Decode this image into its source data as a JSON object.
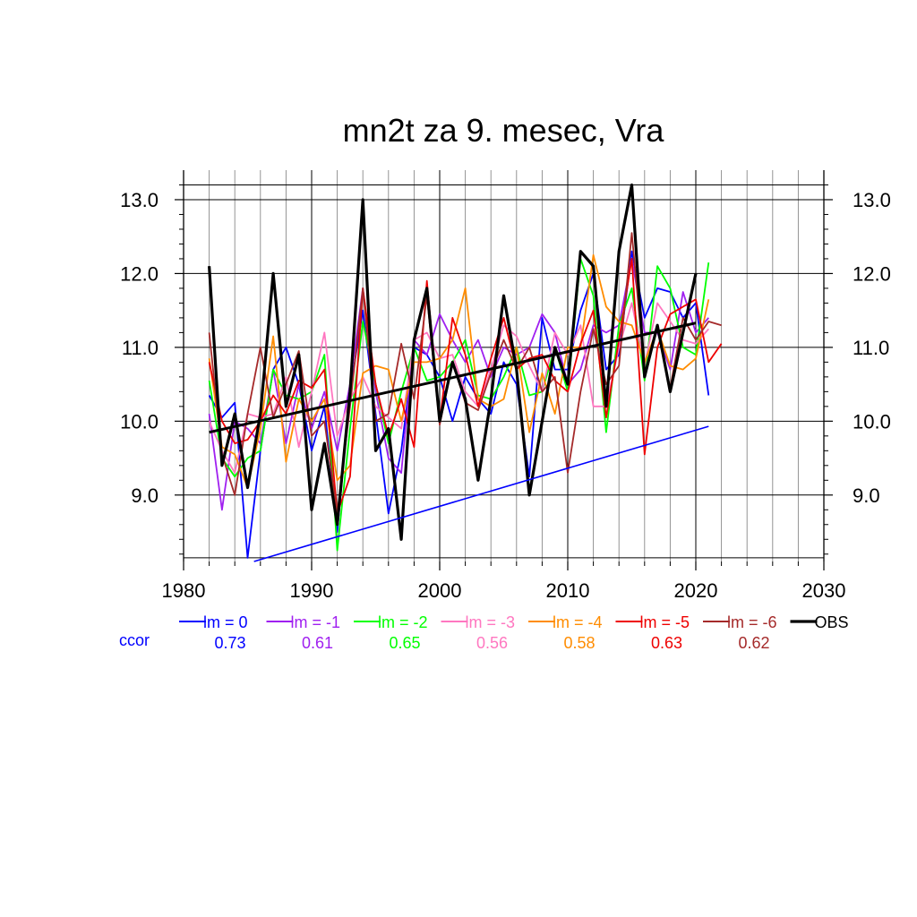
{
  "chart_data": {
    "type": "line",
    "title": "mn2t za 9. mesec, Vra",
    "xlabel": "",
    "ylabel": "",
    "xlim": [
      1980,
      2030
    ],
    "ylim": [
      8.1,
      13.4
    ],
    "x_ticks": [
      "1980",
      "1990",
      "2000",
      "2010",
      "2020",
      "2030"
    ],
    "y_ticks": [
      "9.0",
      "10.0",
      "11.0",
      "12.0",
      "13.0"
    ],
    "grid": true,
    "legend": "bottom",
    "ccor_label": "ccor",
    "series": [
      {
        "name": "lm = 0",
        "color": "#0000ff",
        "ccor": "0.73",
        "x": [
          1982,
          1983,
          1984,
          1985,
          1986,
          1987,
          1988,
          1989,
          1990,
          1991,
          1992,
          1993,
          1994,
          1995,
          1996,
          1997,
          1998,
          1999,
          2000,
          2001,
          2002,
          2003,
          2004,
          2005,
          2006,
          2007,
          2008,
          2009,
          2010,
          2011,
          2012,
          2013,
          2014,
          2015,
          2016,
          2017,
          2018,
          2019,
          2020,
          2021
        ],
        "values": [
          10.35,
          10.05,
          10.25,
          8.15,
          9.6,
          10.7,
          11.0,
          10.5,
          9.6,
          10.2,
          8.5,
          10.4,
          11.5,
          10.1,
          8.75,
          9.6,
          11.0,
          10.9,
          10.6,
          10.0,
          10.6,
          10.3,
          10.1,
          10.8,
          10.5,
          9.25,
          11.4,
          10.7,
          10.7,
          11.5,
          12.0,
          10.7,
          10.9,
          12.3,
          11.4,
          11.8,
          11.75,
          11.4,
          11.6,
          10.35
        ]
      },
      {
        "name": "lm = -1",
        "color": "#a020f0",
        "ccor": "0.61",
        "x": [
          1982,
          1983,
          1984,
          1985,
          1986,
          1987,
          1988,
          1989,
          1990,
          1991,
          1992,
          1993,
          1994,
          1995,
          1996,
          1997,
          1998,
          1999,
          2000,
          2001,
          2002,
          2003,
          2004,
          2005,
          2006,
          2007,
          2008,
          2009,
          2010,
          2011,
          2012,
          2013,
          2014,
          2015,
          2016,
          2017,
          2018,
          2019,
          2020,
          2021
        ],
        "values": [
          10.1,
          8.8,
          10.0,
          9.9,
          9.7,
          10.7,
          9.7,
          10.5,
          9.9,
          10.4,
          9.6,
          10.5,
          11.8,
          10.4,
          9.5,
          9.3,
          11.1,
          10.9,
          11.45,
          11.1,
          10.8,
          11.1,
          10.6,
          11.0,
          10.9,
          11.0,
          11.45,
          11.2,
          10.5,
          10.7,
          11.3,
          11.2,
          11.3,
          12.2,
          11.2,
          11.2,
          10.7,
          11.75,
          11.2,
          11.4
        ]
      },
      {
        "name": "lm = -2",
        "color": "#00ff00",
        "ccor": "0.65",
        "x": [
          1982,
          1983,
          1984,
          1985,
          1986,
          1987,
          1988,
          1989,
          1990,
          1991,
          1992,
          1993,
          1994,
          1995,
          1996,
          1997,
          1998,
          1999,
          2000,
          2001,
          2002,
          2003,
          2004,
          2005,
          2006,
          2007,
          2008,
          2009,
          2010,
          2011,
          2012,
          2013,
          2014,
          2015,
          2016,
          2017,
          2018,
          2019,
          2020,
          2021
        ],
        "values": [
          10.55,
          9.5,
          9.25,
          9.5,
          9.6,
          10.7,
          10.35,
          10.3,
          10.4,
          10.9,
          8.25,
          9.9,
          11.35,
          10.5,
          9.7,
          10.4,
          11.0,
          10.55,
          10.6,
          10.8,
          11.1,
          10.35,
          10.3,
          10.6,
          11.0,
          10.35,
          10.4,
          11.0,
          10.4,
          12.2,
          11.7,
          9.85,
          11.3,
          11.8,
          10.55,
          12.1,
          11.8,
          11.0,
          10.9,
          12.15
        ]
      },
      {
        "name": "lm = -3",
        "color": "#ff77c0",
        "ccor": "0.56",
        "x": [
          1982,
          1983,
          1984,
          1985,
          1986,
          1987,
          1988,
          1989,
          1990,
          1991,
          1992,
          1993,
          1994,
          1995,
          1996,
          1997,
          1998,
          1999,
          2000,
          2001,
          2002,
          2003,
          2004,
          2005,
          2006,
          2007,
          2008,
          2009,
          2010,
          2011,
          2012,
          2013,
          2014,
          2015,
          2016,
          2017,
          2018,
          2019,
          2020,
          2021
        ],
        "values": [
          10.0,
          9.6,
          9.3,
          10.1,
          10.05,
          10.1,
          10.6,
          9.65,
          10.4,
          11.2,
          9.8,
          10.3,
          10.6,
          10.2,
          10.05,
          9.9,
          11.1,
          11.2,
          10.85,
          10.9,
          10.4,
          10.2,
          10.7,
          11.3,
          11.15,
          10.75,
          10.4,
          11.2,
          10.9,
          11.3,
          10.2,
          10.2,
          11.0,
          11.6,
          10.75,
          11.6,
          11.35,
          11.1,
          11.05,
          11.25
        ]
      },
      {
        "name": "lm = -4",
        "color": "#ff8c00",
        "ccor": "0.58",
        "x": [
          1982,
          1983,
          1984,
          1985,
          1986,
          1987,
          1988,
          1989,
          1990,
          1991,
          1992,
          1993,
          1994,
          1995,
          1996,
          1997,
          1998,
          1999,
          2000,
          2001,
          2002,
          2003,
          2004,
          2005,
          2006,
          2007,
          2008,
          2009,
          2010,
          2011,
          2012,
          2013,
          2014,
          2015,
          2016,
          2017,
          2018,
          2019,
          2020,
          2021
        ],
        "values": [
          10.85,
          9.65,
          9.55,
          9.1,
          9.9,
          11.15,
          9.45,
          10.3,
          10.0,
          10.3,
          9.2,
          9.4,
          10.65,
          10.75,
          10.7,
          10.0,
          10.8,
          10.8,
          10.85,
          11.1,
          11.8,
          10.3,
          10.2,
          10.3,
          11.0,
          9.85,
          10.65,
          10.1,
          11.0,
          11.0,
          12.25,
          11.55,
          11.35,
          11.3,
          10.8,
          11.25,
          10.75,
          10.7,
          10.85,
          11.65
        ]
      },
      {
        "name": "lm = -5",
        "color": "#ee0000",
        "ccor": "0.63",
        "x": [
          1982,
          1983,
          1984,
          1985,
          1986,
          1987,
          1988,
          1989,
          1990,
          1991,
          1992,
          1993,
          1994,
          1995,
          1996,
          1997,
          1998,
          1999,
          2000,
          2001,
          2002,
          2003,
          2004,
          2005,
          2006,
          2007,
          2008,
          2009,
          2010,
          2011,
          2012,
          2013,
          2014,
          2015,
          2016,
          2017,
          2018,
          2019,
          2020,
          2021,
          2022
        ],
        "values": [
          10.8,
          10.0,
          9.7,
          9.75,
          10.0,
          10.35,
          10.1,
          10.55,
          10.45,
          10.7,
          8.75,
          9.25,
          11.8,
          10.5,
          9.8,
          10.3,
          9.65,
          11.9,
          10.0,
          11.4,
          10.9,
          10.2,
          10.85,
          11.4,
          10.7,
          10.85,
          10.9,
          10.55,
          10.4,
          11.05,
          11.5,
          10.05,
          11.1,
          12.2,
          9.55,
          11.0,
          11.45,
          11.55,
          11.65,
          10.8,
          11.05
        ]
      },
      {
        "name": "lm = -6",
        "color": "#a52a2a",
        "ccor": "0.62",
        "x": [
          1982,
          1983,
          1984,
          1985,
          1986,
          1987,
          1988,
          1989,
          1990,
          1991,
          1992,
          1993,
          1994,
          1995,
          1996,
          1997,
          1998,
          1999,
          2000,
          2001,
          2002,
          2003,
          2004,
          2005,
          2006,
          2007,
          2008,
          2009,
          2010,
          2011,
          2012,
          2013,
          2014,
          2015,
          2016,
          2017,
          2018,
          2019,
          2020,
          2021,
          2022
        ],
        "values": [
          11.2,
          9.55,
          9.0,
          10.1,
          11.0,
          10.05,
          10.5,
          10.95,
          9.8,
          10.0,
          8.75,
          10.2,
          11.8,
          10.0,
          10.1,
          11.05,
          10.3,
          11.7,
          9.95,
          10.8,
          10.25,
          10.15,
          10.65,
          11.1,
          10.7,
          11.0,
          10.4,
          10.6,
          9.3,
          10.4,
          11.25,
          10.5,
          10.75,
          12.55,
          10.65,
          11.25,
          10.45,
          11.4,
          11.1,
          11.35,
          11.3
        ]
      },
      {
        "name": "OBS",
        "color": "#000000",
        "ccor": "",
        "x": [
          1982,
          1983,
          1984,
          1985,
          1986,
          1987,
          1988,
          1989,
          1990,
          1991,
          1992,
          1993,
          1994,
          1995,
          1996,
          1997,
          1998,
          1999,
          2000,
          2001,
          2002,
          2003,
          2004,
          2005,
          2006,
          2007,
          2008,
          2009,
          2010,
          2011,
          2012,
          2013,
          2014,
          2015,
          2016,
          2017,
          2018,
          2019,
          2020
        ],
        "values": [
          12.1,
          9.4,
          10.1,
          9.1,
          10.1,
          12.0,
          10.2,
          10.9,
          8.8,
          9.7,
          8.6,
          10.4,
          13.0,
          9.6,
          9.9,
          8.4,
          11.1,
          11.8,
          10.0,
          10.8,
          10.3,
          9.2,
          10.3,
          11.7,
          10.7,
          9.0,
          10.0,
          11.0,
          10.5,
          12.3,
          12.1,
          10.2,
          12.3,
          13.2,
          10.6,
          11.3,
          10.4,
          11.2,
          12.0
        ]
      }
    ],
    "trend_lines": [
      {
        "series": "OBS",
        "color": "#000000",
        "x": [
          1982,
          2020
        ],
        "values": [
          9.85,
          11.33
        ]
      },
      {
        "series": "lm = 0",
        "color": "#0000ff",
        "x": [
          1985.5,
          2021
        ],
        "values": [
          8.1,
          9.93
        ]
      }
    ]
  }
}
